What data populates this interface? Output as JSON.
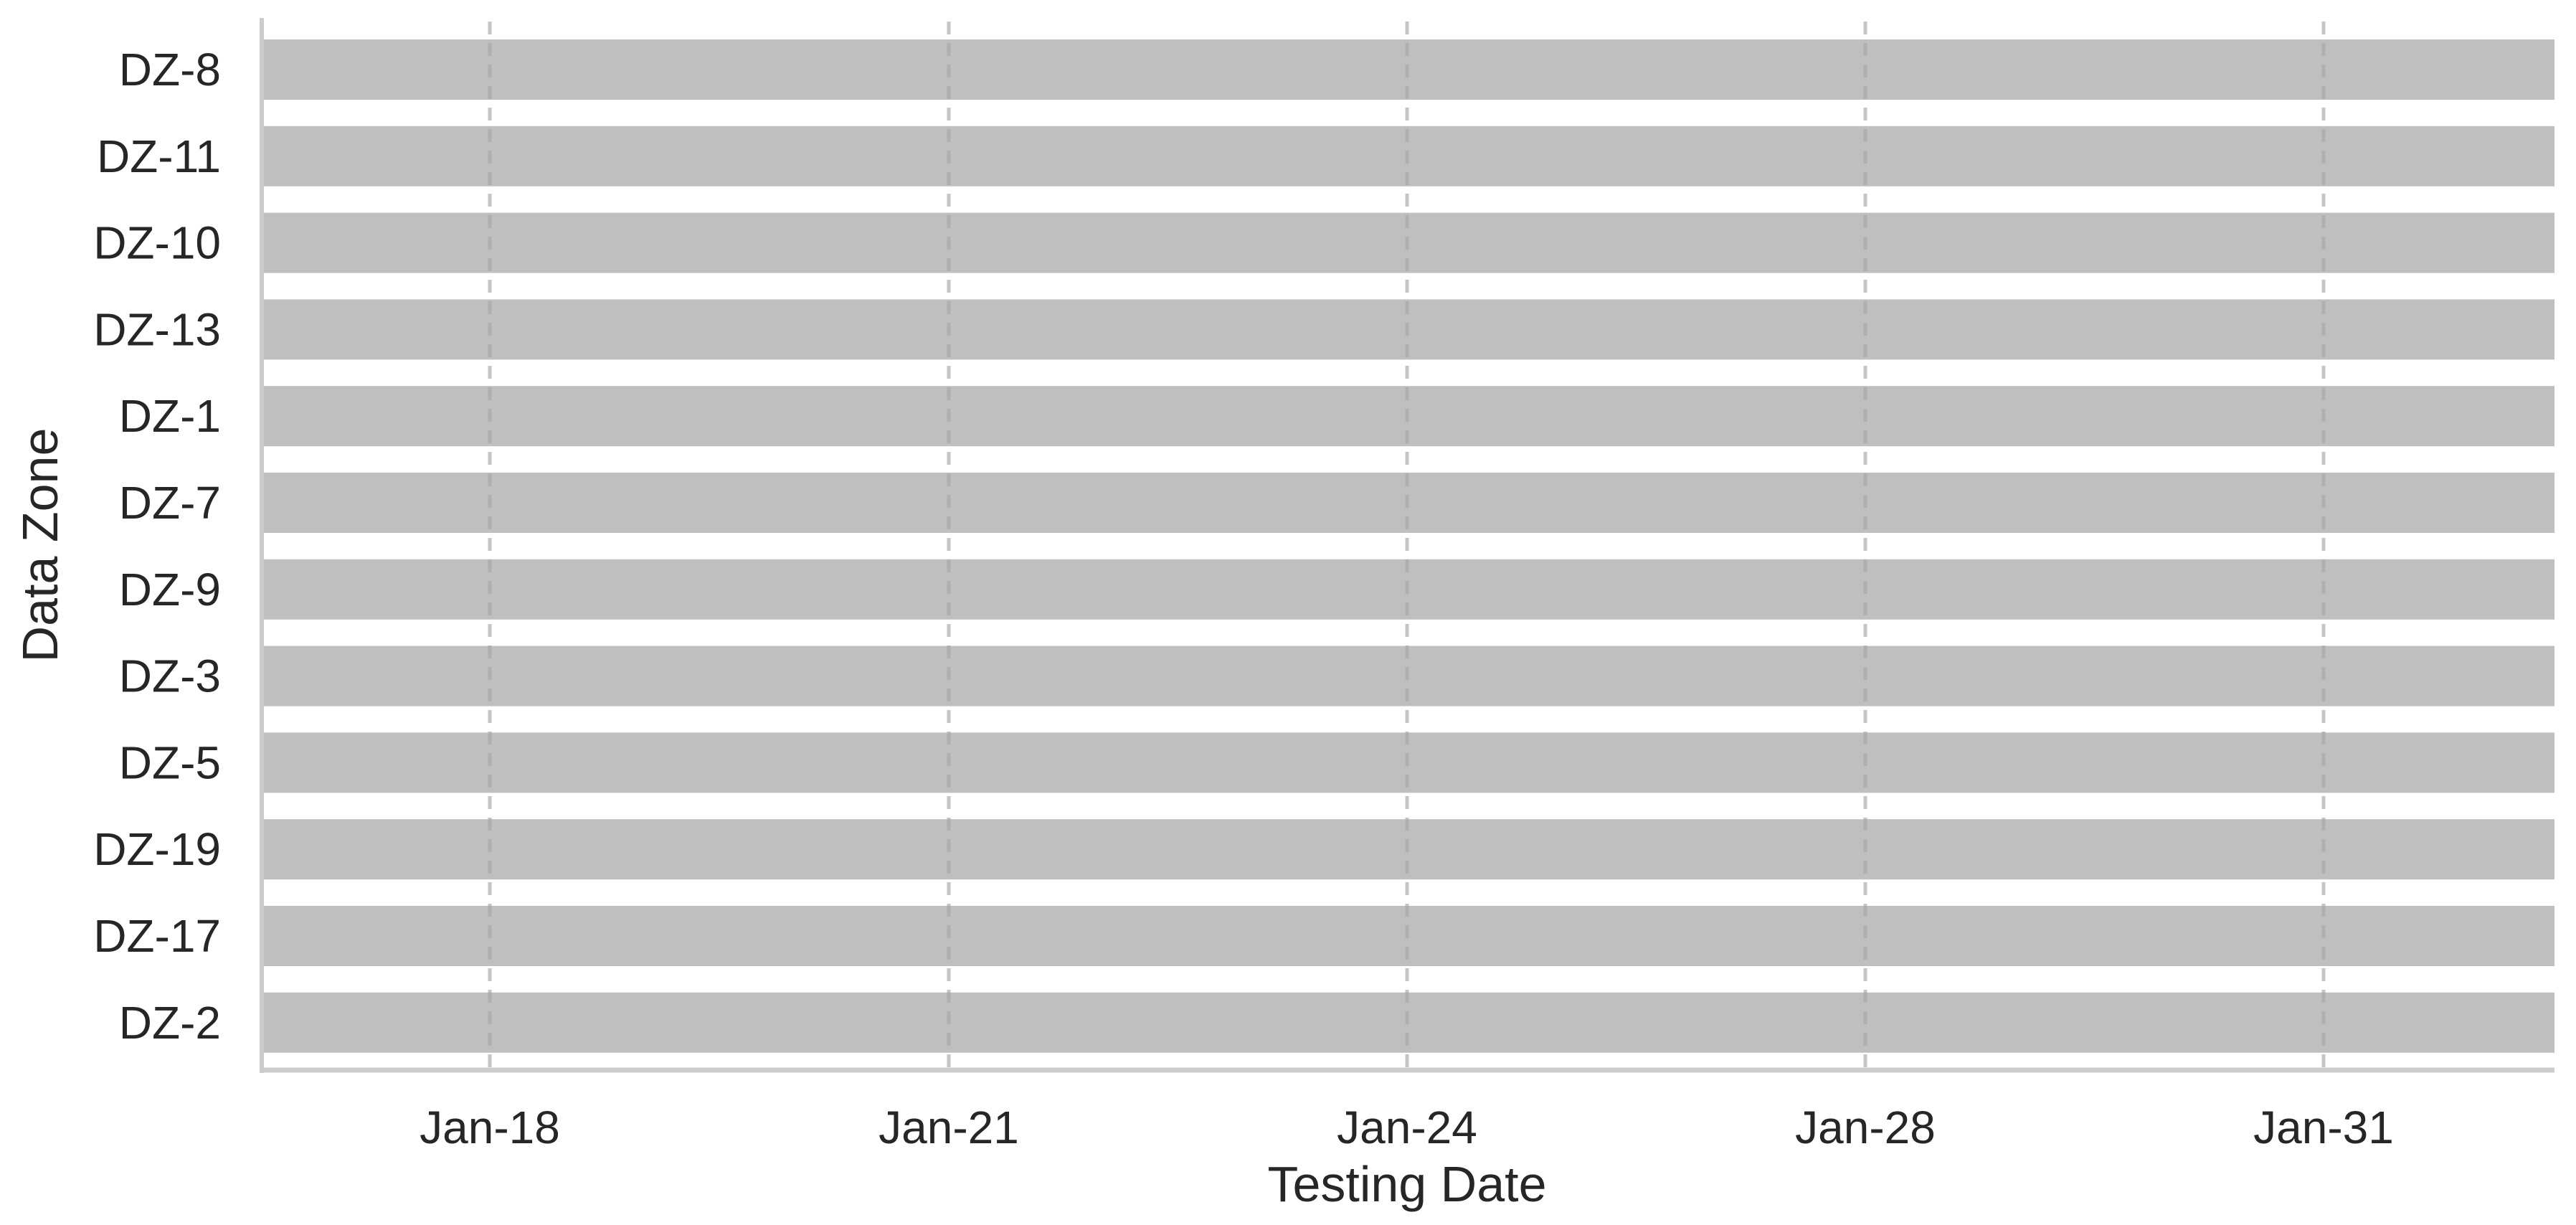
{
  "chart_data": {
    "type": "bar",
    "orientation": "horizontal",
    "xlabel": "Testing Date",
    "ylabel": "Data Zone",
    "x_ticks": [
      "Jan-18",
      "Jan-21",
      "Jan-24",
      "Jan-28",
      "Jan-31"
    ],
    "categories": [
      "DZ-8",
      "DZ-11",
      "DZ-10",
      "DZ-13",
      "DZ-1",
      "DZ-7",
      "DZ-9",
      "DZ-3",
      "DZ-5",
      "DZ-19",
      "DZ-17",
      "DZ-2"
    ],
    "bar_color": "#bfbfbf",
    "grid": "vertical dashed lines at x ticks",
    "legend": "none"
  }
}
